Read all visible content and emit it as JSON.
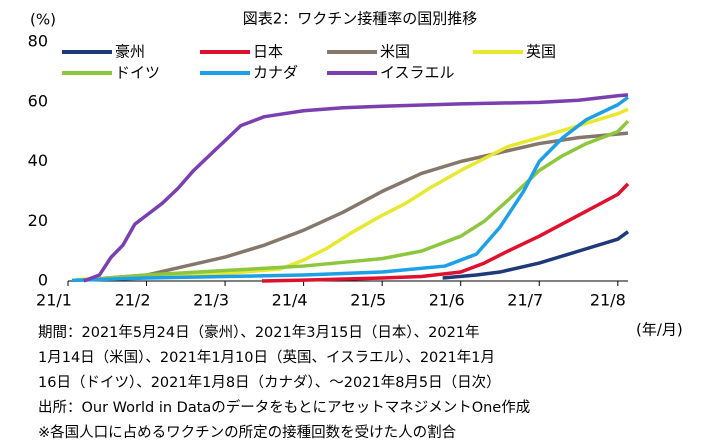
{
  "chart_data": {
    "type": "line",
    "title": "図表2：ワクチン接種率の国別推移",
    "y_unit": "(%)",
    "x_unit": "(年/月)",
    "xlim": [
      0,
      7.13
    ],
    "xticks": [
      {
        "value": 0,
        "label": "21/1"
      },
      {
        "value": 1,
        "label": "21/2"
      },
      {
        "value": 2,
        "label": "21/3"
      },
      {
        "value": 3,
        "label": "21/4"
      },
      {
        "value": 4,
        "label": "21/5"
      },
      {
        "value": 5,
        "label": "21/6"
      },
      {
        "value": 6,
        "label": "21/7"
      },
      {
        "value": 7,
        "label": "21/8"
      }
    ],
    "ylim": [
      0,
      80
    ],
    "yticks": [
      0,
      20,
      40,
      60,
      80
    ],
    "grid": false,
    "series": [
      {
        "name": "豪州",
        "color": "#1f3a78",
        "x": [
          4.77,
          5.2,
          5.5,
          6,
          6.5,
          7,
          7.13
        ],
        "values": [
          1,
          2,
          3,
          6,
          10,
          14,
          16.5
        ]
      },
      {
        "name": "日本",
        "color": "#e0102f",
        "x": [
          2.47,
          3,
          4,
          4.5,
          5,
          5.3,
          5.6,
          6,
          6.5,
          7,
          7.13
        ],
        "values": [
          0,
          0.3,
          1,
          1.5,
          3,
          6,
          10,
          15,
          22,
          29,
          32.5
        ]
      },
      {
        "name": "米国",
        "color": "#85776a",
        "x": [
          0.1,
          0.5,
          1,
          1.5,
          2,
          2.5,
          3,
          3.5,
          4,
          4.5,
          5,
          5.5,
          6,
          6.5,
          7.13
        ],
        "values": [
          0.3,
          1,
          2,
          5,
          8,
          12,
          17,
          23,
          30,
          36,
          40,
          43,
          46,
          48,
          49.5
        ]
      },
      {
        "name": "英国",
        "color": "#e8e830",
        "x": [
          0.1,
          1,
          2,
          2.7,
          3,
          3.3,
          3.6,
          4,
          4.3,
          4.6,
          5,
          5.3,
          5.6,
          6,
          6.5,
          7,
          7.13
        ],
        "values": [
          0.5,
          1.5,
          2.5,
          4,
          7,
          11,
          16,
          22,
          26,
          31,
          37,
          41,
          45,
          48,
          52,
          56,
          57.5
        ]
      },
      {
        "name": "ドイツ",
        "color": "#8dc63f",
        "x": [
          0.15,
          1,
          2,
          3,
          4,
          4.5,
          5,
          5.3,
          5.6,
          6,
          6.3,
          6.6,
          7,
          7.13
        ],
        "values": [
          0.2,
          2,
          3.5,
          5,
          7.5,
          10,
          15,
          20,
          27,
          37,
          42,
          46,
          50,
          53.5
        ]
      },
      {
        "name": "カナダ",
        "color": "#1ea0e6",
        "x": [
          0.05,
          1,
          2,
          3,
          4,
          4.8,
          5.2,
          5.5,
          5.8,
          6,
          6.3,
          6.6,
          7,
          7.13
        ],
        "values": [
          0.2,
          1,
          1.5,
          2,
          3,
          5,
          9,
          18,
          30,
          40,
          48,
          54,
          59,
          61.5
        ]
      },
      {
        "name": "イスラエル",
        "color": "#7b3fb0",
        "x": [
          0.2,
          0.4,
          0.55,
          0.7,
          0.85,
          1,
          1.2,
          1.4,
          1.6,
          1.8,
          2,
          2.2,
          2.5,
          3,
          3.5,
          4,
          5,
          6,
          6.5,
          7,
          7.13
        ],
        "values": [
          0,
          2,
          8,
          12,
          19,
          22,
          26,
          31,
          37,
          42,
          47,
          52,
          55,
          57,
          58,
          58.5,
          59.3,
          59.8,
          60.5,
          62,
          62.3
        ]
      }
    ],
    "notes": [
      "期間：2021年5月24日（豪州）、2021年3月15日（日本）、2021年",
      "1月14日（米国）、2021年1月10日（英国、イスラエル）、2021年1月",
      "16日（ドイツ）、2021年1月8日（カナダ）、～2021年8月5日（日次）",
      "出所：Our World in DataのデータをもとにアセットマネジメントOne作成",
      "※各国人口に占めるワクチンの所定の接種回数を受けた人の割合"
    ]
  }
}
